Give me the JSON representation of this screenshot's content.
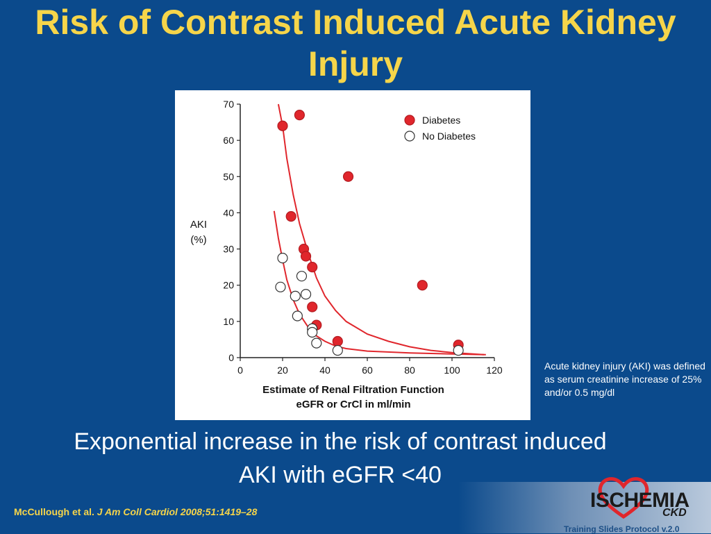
{
  "slide": {
    "title": "Risk of Contrast Induced Acute Kidney Injury",
    "side_note": "Acute kidney injury (AKI) was defined as serum creatinine increase of 25% and/or 0.5 mg/dl",
    "subtitle_line1": "Exponential increase in the risk of contrast induced",
    "subtitle_line2": "AKI with eGFR <40",
    "citation_authors": "McCullough et al.",
    "citation_journal": "J Am Coll Cardiol 2008;51:1419–28",
    "logo_text": "ISCHEMIA",
    "logo_sub": "CKD",
    "footer_text": "Training Slides  Protocol v.2.0"
  },
  "colors": {
    "background": "#0b4a8c",
    "title": "#f6d54a",
    "diabetes": "#e0262c",
    "curve": "#e0262c"
  },
  "chart_data": {
    "type": "scatter",
    "ylabel_line1": "AKI",
    "ylabel_line2": "(%)",
    "xlabel_line1": "Estimate of Renal Filtration Function",
    "xlabel_line2": "eGFR or CrCl in ml/min",
    "xlim": [
      0,
      120
    ],
    "ylim": [
      0,
      70
    ],
    "xticks": [
      0,
      20,
      40,
      60,
      80,
      100,
      120
    ],
    "yticks": [
      0,
      10,
      20,
      30,
      40,
      50,
      60,
      70
    ],
    "legend_position": "top-right",
    "series": [
      {
        "name": "Diabetes",
        "marker": "filled",
        "points": [
          [
            20,
            64
          ],
          [
            28,
            67
          ],
          [
            24,
            39
          ],
          [
            30,
            30
          ],
          [
            31,
            28
          ],
          [
            34,
            25
          ],
          [
            34,
            14
          ],
          [
            36,
            9
          ],
          [
            46,
            4.5
          ],
          [
            51,
            50
          ],
          [
            86,
            20
          ],
          [
            103,
            3.5
          ]
        ]
      },
      {
        "name": "No Diabetes",
        "marker": "open",
        "points": [
          [
            20,
            27.5
          ],
          [
            19,
            19.5
          ],
          [
            29,
            22.5
          ],
          [
            26,
            17
          ],
          [
            31,
            17.5
          ],
          [
            27,
            11.5
          ],
          [
            34,
            8
          ],
          [
            34,
            7
          ],
          [
            36,
            4
          ],
          [
            46,
            2
          ],
          [
            103,
            2
          ]
        ]
      }
    ],
    "curves": [
      {
        "points": [
          [
            18,
            70
          ],
          [
            20,
            64
          ],
          [
            22,
            55
          ],
          [
            25,
            45
          ],
          [
            28,
            37
          ],
          [
            32,
            29
          ],
          [
            36,
            22
          ],
          [
            40,
            17
          ],
          [
            45,
            13
          ],
          [
            50,
            10
          ],
          [
            60,
            6.5
          ],
          [
            70,
            4.5
          ],
          [
            80,
            3
          ],
          [
            90,
            2
          ],
          [
            100,
            1.4
          ],
          [
            115,
            0.8
          ]
        ]
      },
      {
        "points": [
          [
            16,
            40.5
          ],
          [
            18,
            33
          ],
          [
            20,
            27
          ],
          [
            22,
            21.5
          ],
          [
            25,
            16
          ],
          [
            28,
            12
          ],
          [
            32,
            8.5
          ],
          [
            36,
            6
          ],
          [
            40,
            4.5
          ],
          [
            45,
            3.2
          ],
          [
            50,
            2.5
          ],
          [
            60,
            1.8
          ],
          [
            80,
            1.3
          ],
          [
            100,
            1
          ],
          [
            116,
            0.8
          ]
        ]
      }
    ]
  }
}
